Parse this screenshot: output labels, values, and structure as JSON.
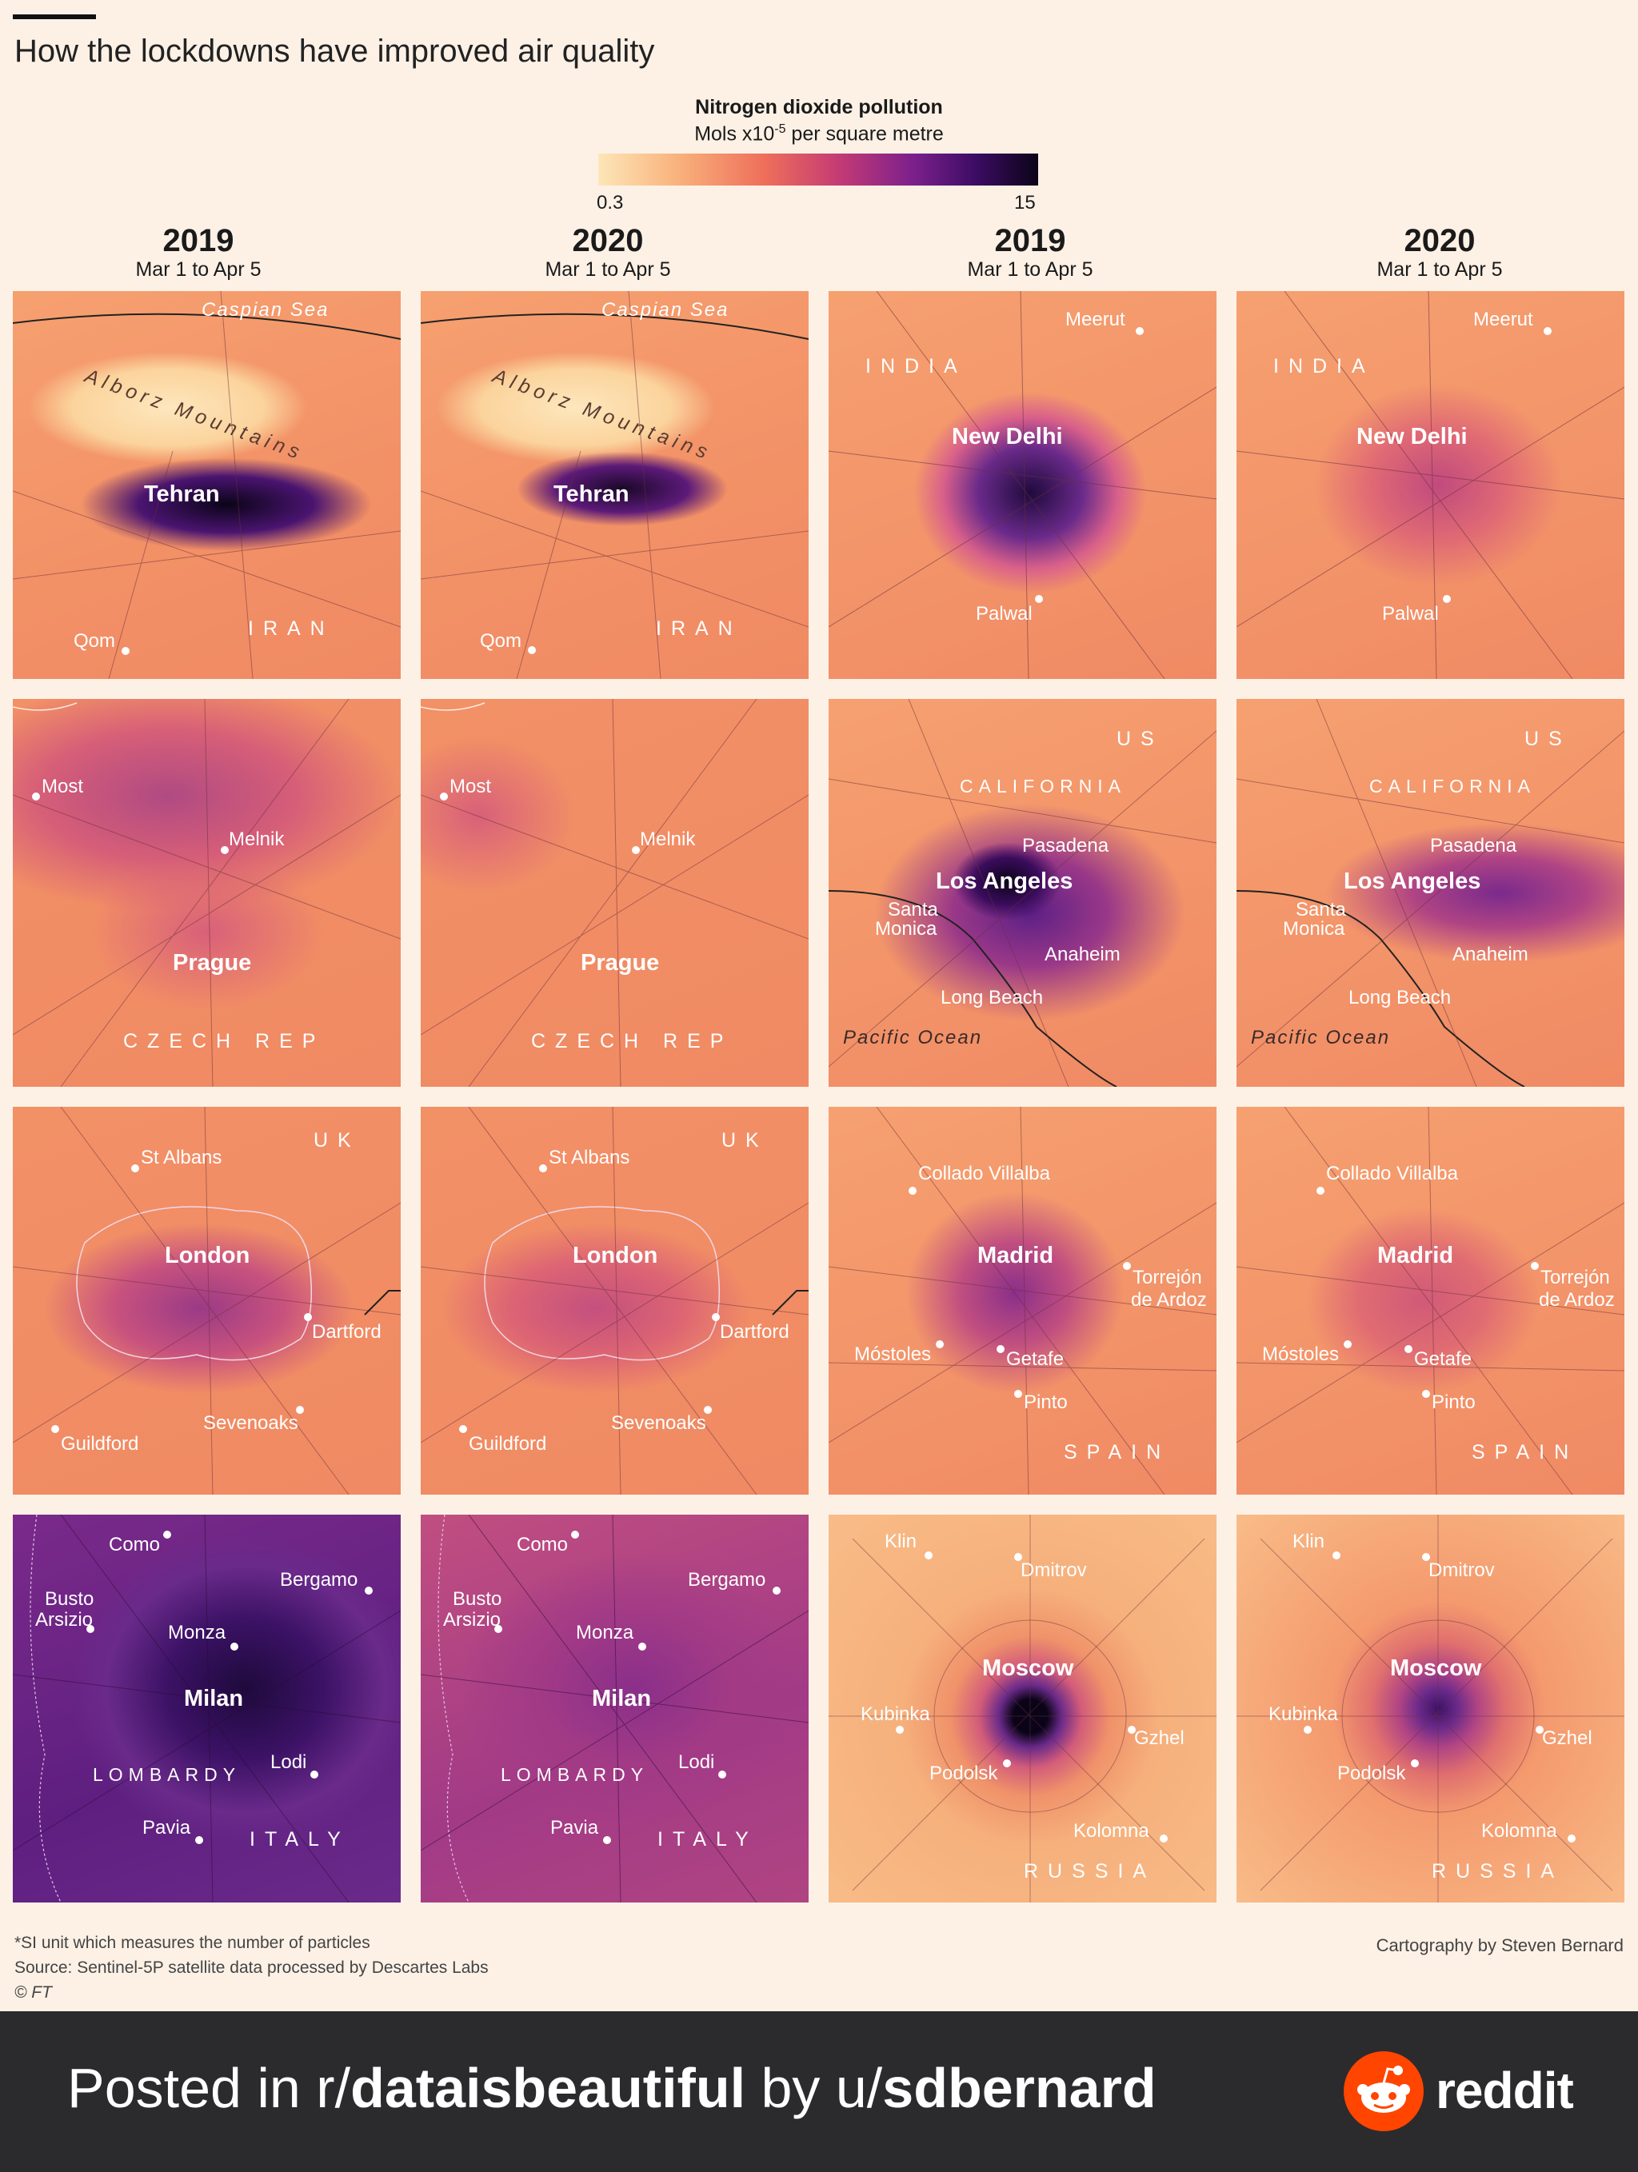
{
  "title": "How the lockdowns have improved air quality",
  "legend": {
    "title": "Nitrogen dioxide pollution",
    "unit_prefix": "Mols x10",
    "unit_exp": "-5",
    "unit_suffix": " per square metre",
    "min": "0.3",
    "max": "15"
  },
  "columns": [
    {
      "year": "2019",
      "range": "Mar 1 to Apr 5"
    },
    {
      "year": "2020",
      "range": "Mar 1 to Apr 5"
    },
    {
      "year": "2019",
      "range": "Mar 1 to Apr 5"
    },
    {
      "year": "2020",
      "range": "Mar 1 to Apr 5"
    }
  ],
  "maps": {
    "tehran": {
      "sea": "Caspian Sea",
      "mountains": "Alborz Mountains",
      "city": "Tehran",
      "town": "Qom",
      "country": "IRAN"
    },
    "delhi": {
      "country": "INDIA",
      "city": "New Delhi",
      "town1": "Meerut",
      "town2": "Palwal"
    },
    "prague": {
      "city": "Prague",
      "town1": "Most",
      "town2": "Melnik",
      "country": "CZECH REP"
    },
    "la": {
      "country": "US",
      "state": "CALIFORNIA",
      "city": "Los Angeles",
      "town1": "Pasadena",
      "town2": "Santa",
      "town2b": "Monica",
      "town3": "Anaheim",
      "town4": "Long Beach",
      "sea": "Pacific Ocean"
    },
    "london": {
      "country": "UK",
      "city": "London",
      "town1": "St Albans",
      "town2": "Dartford",
      "town3": "Guildford",
      "town4": "Sevenoaks"
    },
    "madrid": {
      "city": "Madrid",
      "town1": "Collado Villalba",
      "town2": "Torrejón",
      "town2b": "de Ardoz",
      "town3": "Móstoles",
      "town4": "Getafe",
      "town5": "Pinto",
      "country": "SPAIN"
    },
    "milan": {
      "city": "Milan",
      "town1": "Como",
      "town2": "Bergamo",
      "town3": "Busto",
      "town3b": "Arsizio",
      "town4": "Monza",
      "town5": "Lodi",
      "town6": "Pavia",
      "region": "LOMBARDY",
      "country": "ITALY"
    },
    "moscow": {
      "city": "Moscow",
      "town1": "Klin",
      "town2": "Dmitrov",
      "town3": "Kubinka",
      "town4": "Gzhel",
      "town5": "Podolsk",
      "town6": "Kolomna",
      "country": "RUSSIA"
    }
  },
  "footnotes": {
    "note": "*SI unit which measures the number of particles",
    "source": "Source: Sentinel-5P satellite data processed by Descartes Labs",
    "copyright": "© FT",
    "credit": "Cartography by Steven Bernard"
  },
  "banner": {
    "prefix": "Posted in r/",
    "subreddit": "dataisbeautiful",
    "by": " by u/",
    "user": "sdbernard",
    "brand": "reddit"
  },
  "colors": {
    "background": "#fdf1e6",
    "low": "#fde6b8",
    "high": "#0b0418",
    "banner": "#2b2b2d",
    "reddit": "#ff4500"
  }
}
